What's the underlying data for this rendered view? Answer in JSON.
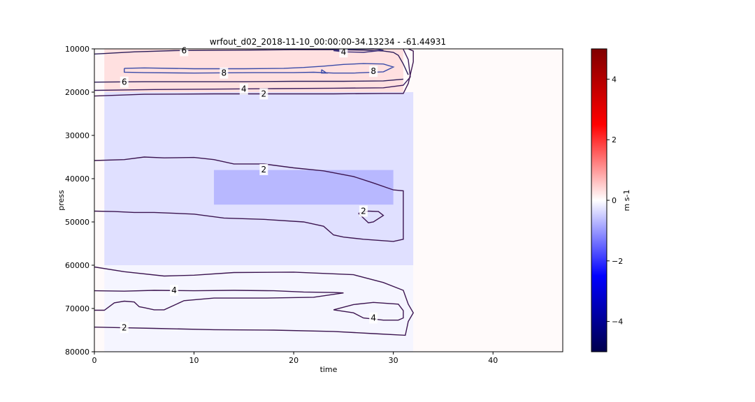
{
  "chart_data": {
    "type": "heatmap",
    "title": "wrfout_d02_2018-11-10_00:00:00-34.13234 - -61.44931",
    "xlabel": "time",
    "ylabel": "press",
    "xlim": [
      0,
      47
    ],
    "ylim": [
      80000,
      10000
    ],
    "x_ticks": [
      0,
      10,
      20,
      30,
      40
    ],
    "y_ticks": [
      10000,
      20000,
      30000,
      40000,
      50000,
      60000,
      70000,
      80000
    ],
    "colorbar": {
      "label": "m s-1",
      "range": [
        -5,
        5
      ],
      "ticks": [
        4,
        2,
        0,
        -2,
        -4
      ],
      "tick_labels": [
        "4",
        "2",
        "0",
        "−2",
        "−4"
      ],
      "colormap": "seismic",
      "colors": [
        "#00004c",
        "#0000ff",
        "#ffffff",
        "#ff0000",
        "#800000"
      ]
    },
    "field_regions": [
      {
        "x": [
          1,
          31
        ],
        "y": [
          10000,
          20000
        ],
        "value": 0.3
      },
      {
        "x": [
          1,
          32
        ],
        "y": [
          20000,
          60000
        ],
        "value": -0.3
      },
      {
        "x": [
          12,
          30
        ],
        "y": [
          38000,
          46000
        ],
        "value": -0.7
      },
      {
        "x": [
          1,
          32
        ],
        "y": [
          60000,
          80000
        ],
        "value": -0.1
      }
    ],
    "contours": [
      {
        "level": "6",
        "color": "#2d1e5a",
        "points": [
          [
            0,
            11200
          ],
          [
            4,
            10700
          ],
          [
            8,
            10400
          ],
          [
            14,
            10300
          ],
          [
            20,
            10200
          ],
          [
            24,
            10200
          ],
          [
            27,
            10300
          ],
          [
            29,
            10500
          ],
          [
            30,
            10800
          ],
          [
            30.5,
            11500
          ],
          [
            31,
            13500
          ],
          [
            31.5,
            16000
          ]
        ]
      },
      {
        "level": "6",
        "color": "#2d1e5a",
        "points": [
          [
            0,
            17700
          ],
          [
            5,
            17600
          ],
          [
            10,
            17600
          ],
          [
            15,
            17600
          ],
          [
            20,
            17500
          ],
          [
            25,
            17500
          ],
          [
            29,
            17400
          ],
          [
            31,
            17000
          ]
        ]
      },
      {
        "level": "4",
        "color": "#3c1e5e",
        "points": [
          [
            0,
            19600
          ],
          [
            6,
            19400
          ],
          [
            12,
            19300
          ],
          [
            18,
            19200
          ],
          [
            24,
            19100
          ],
          [
            29,
            19000
          ],
          [
            31,
            18400
          ],
          [
            31.7,
            16500
          ],
          [
            31.5,
            12500
          ],
          [
            31,
            10100
          ]
        ]
      },
      {
        "level": "4",
        "color": "#3a2e7a",
        "points": [
          [
            24,
            10400
          ],
          [
            26,
            10100
          ],
          [
            28,
            10000
          ],
          [
            29,
            10300
          ],
          [
            27,
            10800
          ],
          [
            25,
            10700
          ],
          [
            24,
            10400
          ]
        ]
      },
      {
        "level": "2",
        "color": "#3c1550",
        "points": [
          [
            0,
            20900
          ],
          [
            5,
            20500
          ],
          [
            12,
            20400
          ],
          [
            18,
            20400
          ],
          [
            24,
            20400
          ],
          [
            29,
            20300
          ],
          [
            31,
            20300
          ],
          [
            31.5,
            18000
          ],
          [
            32,
            13000
          ],
          [
            32,
            10500
          ],
          [
            31.5,
            10000
          ]
        ]
      },
      {
        "level": "8",
        "color": "#3a4ba8",
        "points": [
          [
            3,
            14500
          ],
          [
            5,
            14400
          ],
          [
            10,
            14600
          ],
          [
            15,
            14600
          ],
          [
            19,
            14500
          ],
          [
            21,
            14300
          ],
          [
            23,
            14000
          ],
          [
            25,
            13600
          ],
          [
            27,
            13400
          ],
          [
            29,
            13500
          ],
          [
            30,
            14200
          ],
          [
            29,
            15300
          ],
          [
            26,
            15600
          ],
          [
            24,
            15600
          ],
          [
            22,
            15400
          ],
          [
            20,
            15500
          ],
          [
            16,
            15500
          ],
          [
            10,
            15600
          ],
          [
            5,
            15500
          ],
          [
            3,
            15400
          ],
          [
            3,
            14500
          ]
        ]
      },
      {
        "level": "8",
        "color": "#3a4ba8",
        "points": [
          [
            22.8,
            14800
          ],
          [
            23.3,
            15600
          ],
          [
            22.8,
            15600
          ],
          [
            22.8,
            14800
          ]
        ]
      },
      {
        "level": "2",
        "color": "#3c1550",
        "points": [
          [
            0,
            35800
          ],
          [
            3,
            35600
          ],
          [
            5,
            35000
          ],
          [
            7,
            35200
          ],
          [
            10,
            35100
          ],
          [
            12,
            35600
          ],
          [
            14,
            36600
          ],
          [
            17,
            36600
          ],
          [
            20,
            37500
          ],
          [
            23,
            38200
          ],
          [
            26,
            39500
          ],
          [
            28,
            41000
          ],
          [
            30,
            42600
          ],
          [
            31,
            42800
          ],
          [
            31,
            47000
          ],
          [
            31,
            52000
          ],
          [
            31,
            54000
          ],
          [
            30,
            54500
          ],
          [
            27,
            54000
          ],
          [
            25,
            53500
          ],
          [
            24,
            53000
          ],
          [
            23,
            51000
          ],
          [
            21,
            50000
          ],
          [
            17,
            49400
          ],
          [
            13,
            49100
          ],
          [
            11,
            48500
          ],
          [
            10,
            48200
          ],
          [
            8,
            48000
          ],
          [
            6,
            47800
          ],
          [
            4,
            47800
          ],
          [
            2,
            47600
          ],
          [
            0,
            47500
          ]
        ]
      },
      {
        "level": "2",
        "color": "#3c1550",
        "points": [
          [
            26.5,
            48000
          ],
          [
            27.5,
            47500
          ],
          [
            28.5,
            47600
          ],
          [
            29,
            48500
          ],
          [
            28,
            50000
          ],
          [
            27.5,
            50200
          ],
          [
            26.5,
            48000
          ]
        ]
      },
      {
        "level": "2",
        "color": "#3c1550",
        "points": [
          [
            0,
            60400
          ],
          [
            3,
            61500
          ],
          [
            7,
            62500
          ],
          [
            10,
            62300
          ],
          [
            14,
            61700
          ],
          [
            20,
            61600
          ],
          [
            26,
            62200
          ],
          [
            29,
            64000
          ],
          [
            31,
            65800
          ],
          [
            31.5,
            69000
          ],
          [
            32,
            71000
          ],
          [
            31.5,
            73000
          ],
          [
            31.2,
            76200
          ],
          [
            28,
            75800
          ],
          [
            24,
            75300
          ],
          [
            18,
            75000
          ],
          [
            12,
            74900
          ],
          [
            6,
            74600
          ],
          [
            2,
            74400
          ],
          [
            0,
            74300
          ]
        ]
      },
      {
        "level": "4",
        "color": "#3c1550",
        "points": [
          [
            0,
            65900
          ],
          [
            3,
            66000
          ],
          [
            6,
            65800
          ],
          [
            10,
            65900
          ],
          [
            14,
            65800
          ],
          [
            18,
            65900
          ],
          [
            21,
            66200
          ],
          [
            24,
            66300
          ],
          [
            25,
            66400
          ],
          [
            22,
            67400
          ],
          [
            17,
            67600
          ],
          [
            12,
            67600
          ],
          [
            9,
            68200
          ],
          [
            7,
            70300
          ],
          [
            6,
            70300
          ],
          [
            5,
            69800
          ],
          [
            4.5,
            69600
          ],
          [
            4,
            68500
          ],
          [
            3,
            68300
          ],
          [
            2,
            68700
          ],
          [
            1,
            70400
          ],
          [
            0,
            70400
          ]
        ]
      },
      {
        "level": "4",
        "color": "#3c1550",
        "points": [
          [
            24,
            70300
          ],
          [
            26,
            69100
          ],
          [
            28,
            68600
          ],
          [
            30.5,
            69000
          ],
          [
            31,
            70500
          ],
          [
            31,
            72200
          ],
          [
            30.5,
            72700
          ],
          [
            29,
            72700
          ],
          [
            27,
            72200
          ],
          [
            26,
            71000
          ],
          [
            24,
            70300
          ]
        ]
      }
    ],
    "contour_labels": [
      {
        "text": "6",
        "x": 9,
        "y": 10400
      },
      {
        "text": "4",
        "x": 25,
        "y": 10700
      },
      {
        "text": "6",
        "x": 3,
        "y": 17700
      },
      {
        "text": "8",
        "x": 13,
        "y": 15600
      },
      {
        "text": "8",
        "x": 28,
        "y": 15200
      },
      {
        "text": "4",
        "x": 15,
        "y": 19300
      },
      {
        "text": "2",
        "x": 17,
        "y": 20400
      },
      {
        "text": "2",
        "x": 17,
        "y": 37900
      },
      {
        "text": "2",
        "x": 27,
        "y": 47500
      },
      {
        "text": "4",
        "x": 8,
        "y": 65800
      },
      {
        "text": "4",
        "x": 28,
        "y": 72200
      },
      {
        "text": "2",
        "x": 3,
        "y": 74400
      }
    ]
  }
}
